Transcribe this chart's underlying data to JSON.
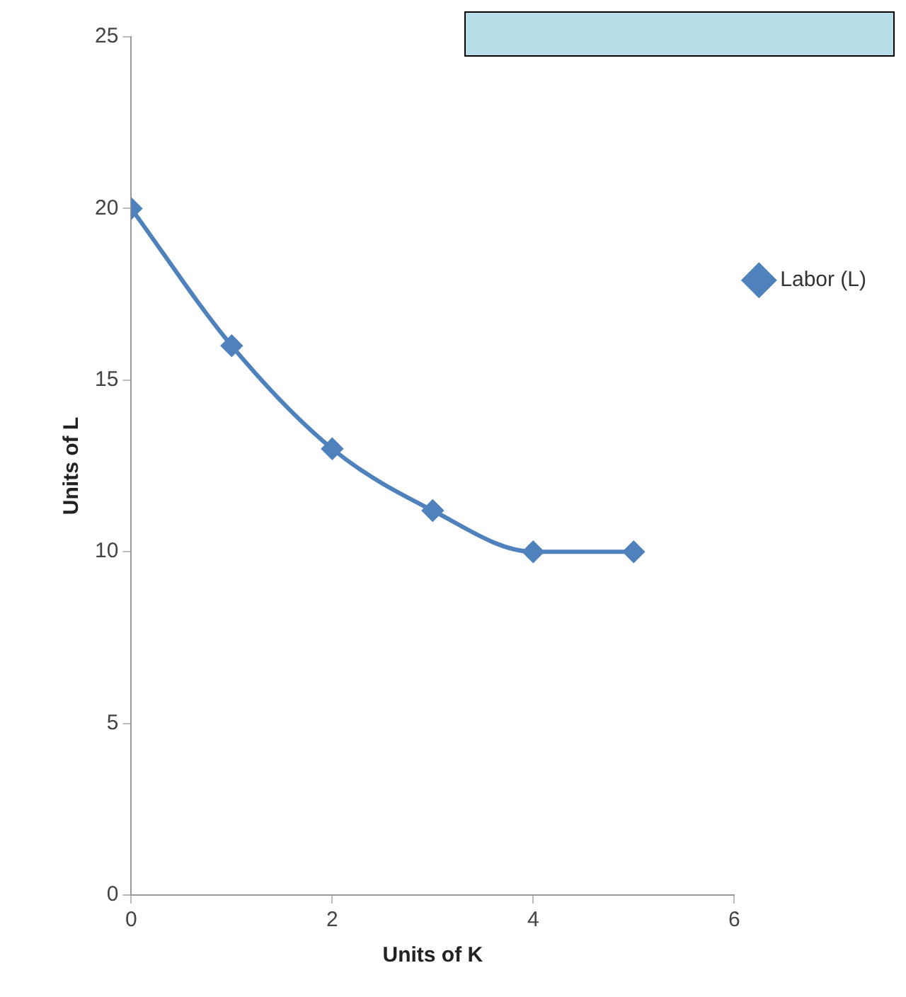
{
  "chart_data": {
    "type": "line",
    "xlabel": "Units of K",
    "ylabel": "Units of L",
    "x": [
      0,
      1,
      2,
      3,
      4,
      5
    ],
    "series": [
      {
        "name": "Labor (L)",
        "color": "#4f81bd",
        "values": [
          20,
          16,
          13,
          11.2,
          10,
          10
        ]
      }
    ],
    "xlim": [
      0,
      6
    ],
    "xticks": [
      0,
      2,
      4,
      6
    ],
    "ylim": [
      0,
      25
    ],
    "yticks": [
      0,
      5,
      10,
      15,
      20,
      25
    ],
    "grid": false,
    "legend": "right",
    "marker": "diamond",
    "line_style": "solid"
  }
}
